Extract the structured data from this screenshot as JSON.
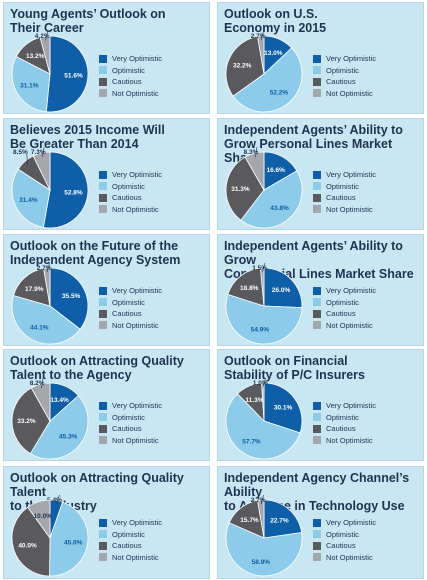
{
  "colors": {
    "very_optimistic": "#0e5ea8",
    "optimistic": "#8ccbea",
    "cautious": "#5a5a5e",
    "not_optimistic": "#a3a6ab",
    "panel_bg": "#c9e6f3",
    "title_text": "#1f3350"
  },
  "legend": {
    "very_optimistic": "Very Optimistic",
    "optimistic": "Optimistic",
    "cautious": "Cautious",
    "not_optimistic": "Not Optimistic"
  },
  "chart_data": [
    {
      "type": "pie",
      "title": "Young Agents’ Outlook on\nTheir Career",
      "values": [
        51.6,
        31.1,
        13.2,
        4.2
      ],
      "labels": [
        "51.6%",
        "31.1%",
        "13.2%",
        "4.2%"
      ]
    },
    {
      "type": "pie",
      "title": "Outlook on U.S.\nEconomy in 2015",
      "values": [
        13.0,
        52.2,
        32.2,
        2.7
      ],
      "labels": [
        "13.0%",
        "52.2%",
        "32.2%",
        "2.7%"
      ]
    },
    {
      "type": "pie",
      "title": "Believes 2015 Income Will\nBe Greater Than 2014",
      "values": [
        52.8,
        31.4,
        8.5,
        7.3
      ],
      "labels": [
        "52.8%",
        "31.4%",
        "8.5%",
        "7.3%"
      ]
    },
    {
      "type": "pie",
      "title": "Independent Agents’ Ability to\nGrow Personal Lines Market Share",
      "values": [
        16.6,
        43.8,
        31.3,
        8.3
      ],
      "labels": [
        "16.6%",
        "43.8%",
        "31.3%",
        "8.3%"
      ]
    },
    {
      "type": "pie",
      "title": "Outlook on the Future of the\nIndependent Agency System",
      "values": [
        35.5,
        44.1,
        17.9,
        2.7
      ],
      "labels": [
        "35.5%",
        "44.1%",
        "17.9%",
        "2.7%"
      ]
    },
    {
      "type": "pie",
      "title": "Independent Agents’ Ability to Grow\nCommercial Lines Market Share",
      "values": [
        26.0,
        54.9,
        18.8,
        1.5
      ],
      "labels": [
        "26.0%",
        "54.9%",
        "18.8%",
        "1.5%"
      ]
    },
    {
      "type": "pie",
      "title": "Outlook on Attracting Quality\nTalent to the Agency",
      "values": [
        13.4,
        45.3,
        33.2,
        8.2
      ],
      "labels": [
        "13.4%",
        "45.3%",
        "33.2%",
        "8.2%"
      ]
    },
    {
      "type": "pie",
      "title": "Outlook on Financial\nStability of P/C Insurers",
      "values": [
        30.1,
        57.7,
        11.3,
        1.0
      ],
      "labels": [
        "30.1%",
        "57.7%",
        "11.3%",
        "1.0%"
      ]
    },
    {
      "type": "pie",
      "title": "Outlook on Attracting Quality Talent\nto the Industry",
      "values": [
        5.4,
        45.0,
        40.0,
        10.0
      ],
      "labels": [
        "5.4%",
        "45.0%",
        "40.0%",
        "10.0%"
      ]
    },
    {
      "type": "pie",
      "title": "Independent Agency Channel’s Ability\nto Advance in Technology Use",
      "values": [
        22.7,
        58.9,
        15.7,
        2.7
      ],
      "labels": [
        "22.7%",
        "58.9%",
        "15.7%",
        "2.7%"
      ]
    }
  ]
}
